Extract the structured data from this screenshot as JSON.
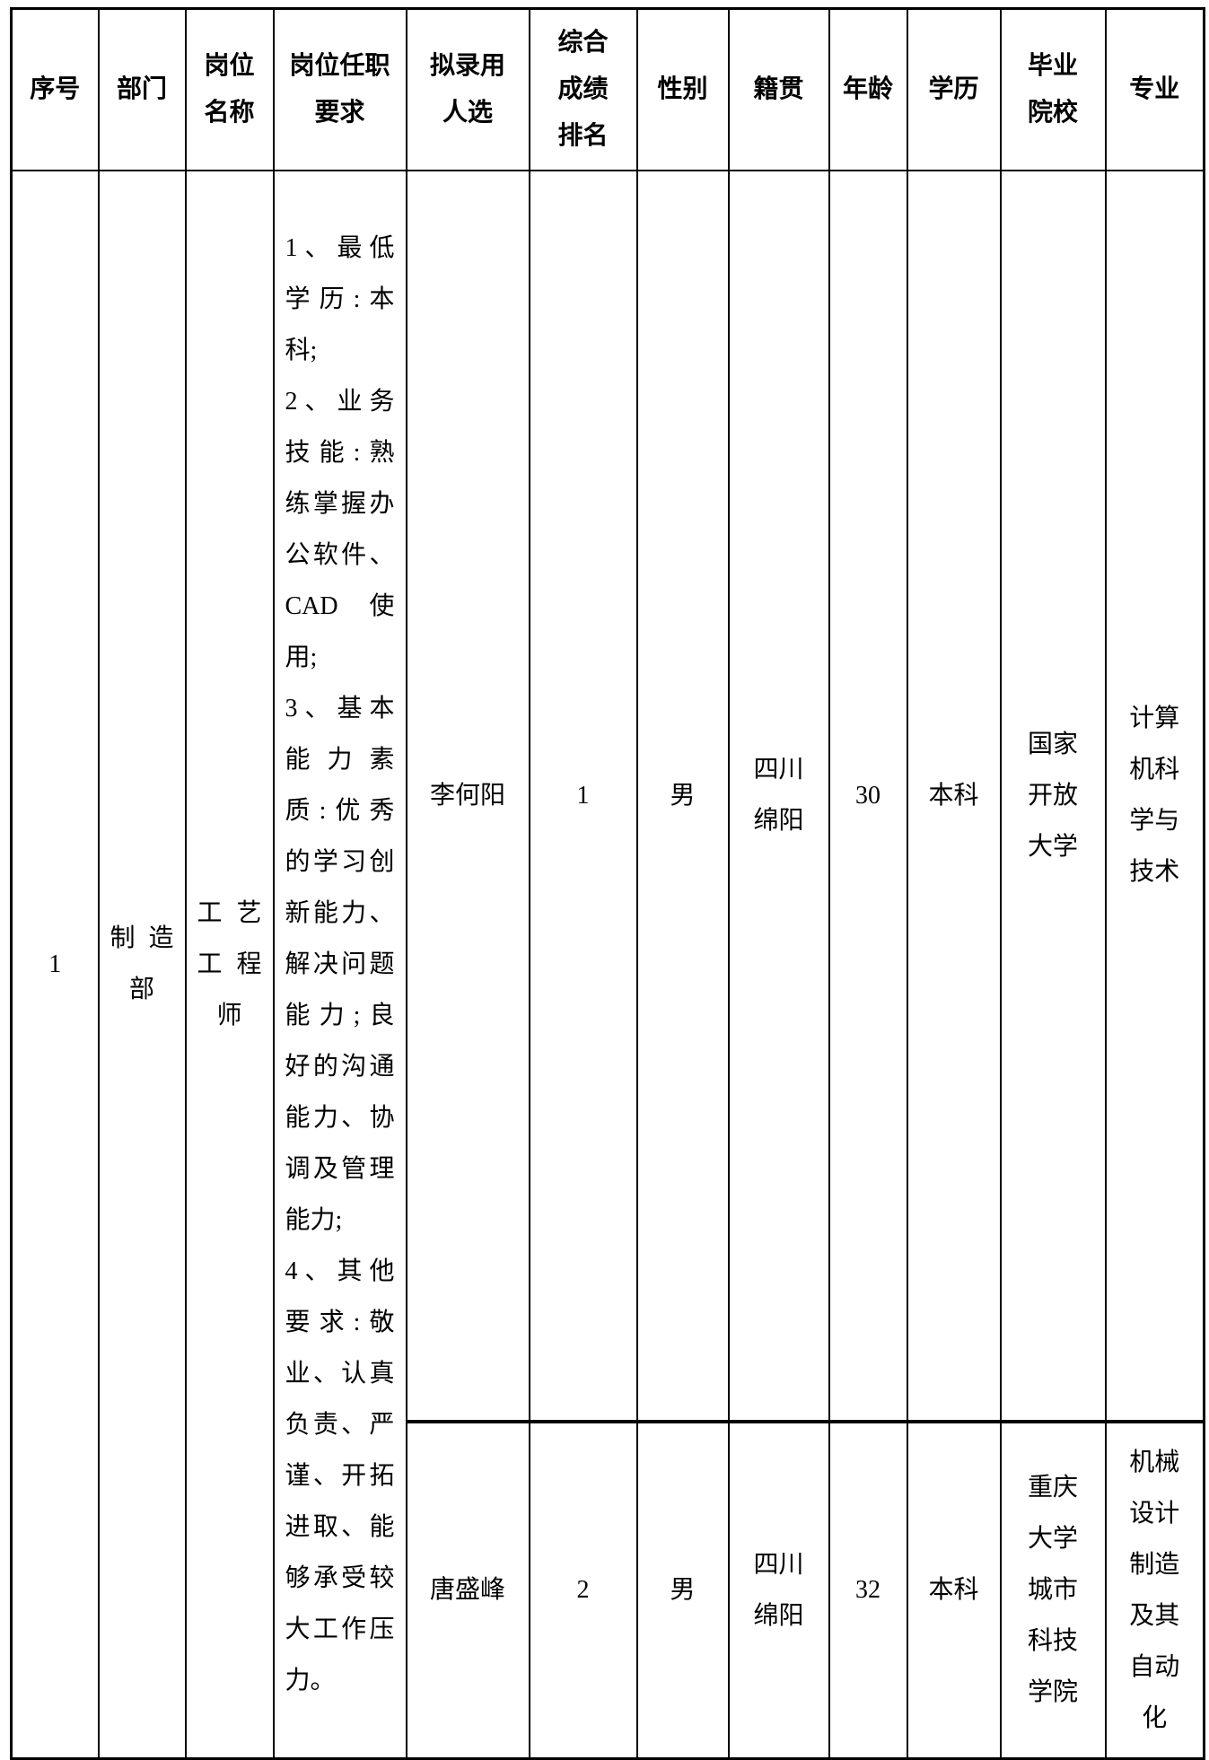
{
  "table": {
    "columns": [
      {
        "label": "序号"
      },
      {
        "label": "部门"
      },
      {
        "label": "岗位\n名称"
      },
      {
        "label": "岗位任职\n要求"
      },
      {
        "label": "拟录用\n人选"
      },
      {
        "label": "综合\n成绩\n排名"
      },
      {
        "label": "性别"
      },
      {
        "label": "籍贯"
      },
      {
        "label": "年龄"
      },
      {
        "label": "学历"
      },
      {
        "label": "毕业\n院校"
      },
      {
        "label": "专业"
      }
    ],
    "row": {
      "serial": "1",
      "department_lines": [
        {
          "t": "制造",
          "j": true
        },
        {
          "t": "部",
          "j": false
        }
      ],
      "position_lines": [
        {
          "t": "工艺",
          "j": true
        },
        {
          "t": "工程",
          "j": true
        },
        {
          "t": "师",
          "j": false
        }
      ],
      "requirements_lines": [
        {
          "t": "1、最低",
          "j": true
        },
        {
          "t": "学历:本",
          "j": true
        },
        {
          "t": "科;",
          "j": false
        },
        {
          "t": "2、业务",
          "j": true
        },
        {
          "t": "技能:熟",
          "j": true
        },
        {
          "t": "练掌握办",
          "j": true
        },
        {
          "t": "公软件、",
          "j": true
        },
        {
          "t": "CAD 使",
          "j": true
        },
        {
          "t": "用;",
          "j": false
        },
        {
          "t": "3、基本",
          "j": true
        },
        {
          "t": "能力素",
          "j": true
        },
        {
          "t": "质:优秀",
          "j": true
        },
        {
          "t": "的学习创",
          "j": true
        },
        {
          "t": "新能力、",
          "j": true
        },
        {
          "t": "解决问题",
          "j": true
        },
        {
          "t": "能力;良",
          "j": true
        },
        {
          "t": "好的沟通",
          "j": true
        },
        {
          "t": "能力、协",
          "j": true
        },
        {
          "t": "调及管理",
          "j": true
        },
        {
          "t": "能力;",
          "j": false
        },
        {
          "t": "4、其他",
          "j": true
        },
        {
          "t": "要求:敬",
          "j": true
        },
        {
          "t": "业、认真",
          "j": true
        },
        {
          "t": "负责、严",
          "j": true
        },
        {
          "t": "谨、开拓",
          "j": true
        },
        {
          "t": "进取、能",
          "j": true
        },
        {
          "t": "够承受较",
          "j": true
        },
        {
          "t": "大工作压",
          "j": true
        },
        {
          "t": "力。",
          "j": false
        }
      ],
      "candidates": [
        {
          "name": "李何阳",
          "rank": "1",
          "gender": "男",
          "native_place": "四川\n绵阳",
          "age": "30",
          "education": "本科",
          "school": "国家\n开放\n大学",
          "major": "计算\n机科\n学与\n技术"
        },
        {
          "name": "唐盛峰",
          "rank": "2",
          "gender": "男",
          "native_place": "四川\n绵阳",
          "age": "32",
          "education": "本科",
          "school": "重庆\n大学\n城市\n科技\n学院",
          "major": "机械\n设计\n制造\n及其\n自动\n化"
        }
      ]
    }
  }
}
